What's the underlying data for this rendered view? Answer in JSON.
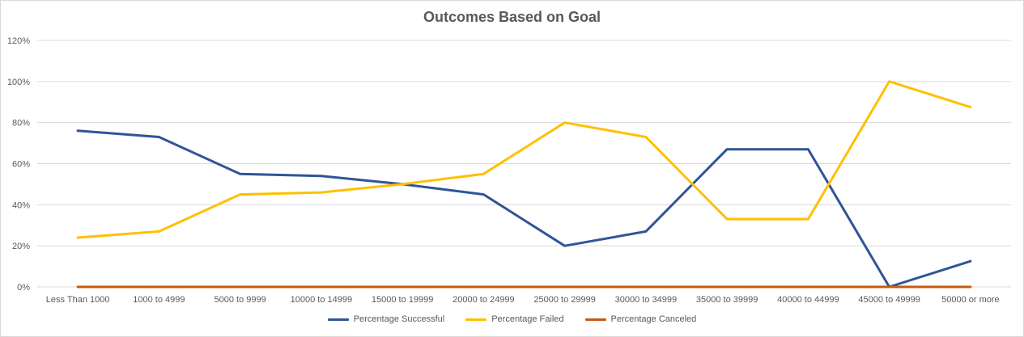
{
  "chart_data": {
    "type": "line",
    "title": "Outcomes Based on Goal",
    "xlabel": "",
    "ylabel": "",
    "categories": [
      "Less Than 1000",
      "1000 to 4999",
      "5000 to 9999",
      "10000 to 14999",
      "15000 to 19999",
      "20000 to 24999",
      "25000 to 29999",
      "30000 to 34999",
      "35000 to 39999",
      "40000 to 44999",
      "45000 to 49999",
      "50000 or more"
    ],
    "ylim": [
      0,
      120
    ],
    "yticks": [
      "0%",
      "20%",
      "40%",
      "60%",
      "80%",
      "100%",
      "120%"
    ],
    "grid": true,
    "legend_position": "bottom",
    "series": [
      {
        "name": "Percentage Successful",
        "color": "#2F5597",
        "values": [
          76,
          73,
          55,
          54,
          50,
          45,
          20,
          27,
          67,
          67,
          0,
          12.5
        ]
      },
      {
        "name": "Percentage Failed",
        "color": "#FFC000",
        "values": [
          24,
          27,
          45,
          46,
          50,
          55,
          80,
          73,
          33,
          33,
          100,
          87.5
        ]
      },
      {
        "name": "Percentage Canceled",
        "color": "#C55A11",
        "values": [
          0,
          0,
          0,
          0,
          0,
          0,
          0,
          0,
          0,
          0,
          0,
          0
        ]
      }
    ]
  }
}
